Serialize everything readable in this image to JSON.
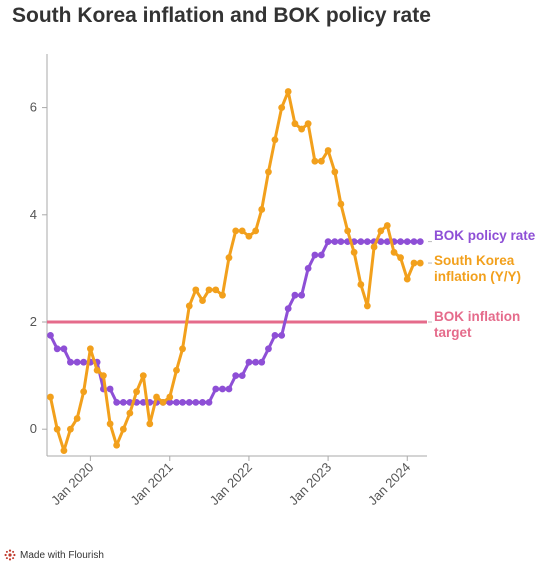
{
  "title": "South Korea inflation and BOK policy rate",
  "footer": {
    "text": "Made with Flourish",
    "logo_icon": "flourish-logo-icon"
  },
  "chart_data": {
    "type": "line",
    "title": "South Korea inflation and BOK policy rate",
    "xlabel": "",
    "ylabel": "",
    "ylim": [
      -0.5,
      7
    ],
    "yticks": [
      0,
      2,
      4,
      6
    ],
    "xlim": [
      "2019-06-15",
      "2024-04-01"
    ],
    "xticks": [
      {
        "label": "Jan 2020",
        "date": "2020-01-01"
      },
      {
        "label": "Jan 2021",
        "date": "2021-01-01"
      },
      {
        "label": "Jan 2022",
        "date": "2022-01-01"
      },
      {
        "label": "Jan 2023",
        "date": "2023-01-01"
      },
      {
        "label": "Jan 2024",
        "date": "2024-01-01"
      }
    ],
    "grid": false,
    "legend_placement": "right, end of lines",
    "x": [
      "2019-07",
      "2019-08",
      "2019-09",
      "2019-10",
      "2019-11",
      "2019-12",
      "2020-01",
      "2020-02",
      "2020-03",
      "2020-04",
      "2020-05",
      "2020-06",
      "2020-07",
      "2020-08",
      "2020-09",
      "2020-10",
      "2020-11",
      "2020-12",
      "2021-01",
      "2021-02",
      "2021-03",
      "2021-04",
      "2021-05",
      "2021-06",
      "2021-07",
      "2021-08",
      "2021-09",
      "2021-10",
      "2021-11",
      "2021-12",
      "2022-01",
      "2022-02",
      "2022-03",
      "2022-04",
      "2022-05",
      "2022-06",
      "2022-07",
      "2022-08",
      "2022-09",
      "2022-10",
      "2022-11",
      "2022-12",
      "2023-01",
      "2023-02",
      "2023-03",
      "2023-04",
      "2023-05",
      "2023-06",
      "2023-07",
      "2023-08",
      "2023-09",
      "2023-10",
      "2023-11",
      "2023-12",
      "2024-01",
      "2024-02",
      "2024-03"
    ],
    "series": [
      {
        "name": "BOK policy rate",
        "color": "#8e4fd6",
        "values": [
          1.75,
          1.5,
          1.5,
          1.25,
          1.25,
          1.25,
          1.25,
          1.25,
          0.75,
          0.75,
          0.5,
          0.5,
          0.5,
          0.5,
          0.5,
          0.5,
          0.5,
          0.5,
          0.5,
          0.5,
          0.5,
          0.5,
          0.5,
          0.5,
          0.5,
          0.75,
          0.75,
          0.75,
          1.0,
          1.0,
          1.25,
          1.25,
          1.25,
          1.5,
          1.75,
          1.75,
          2.25,
          2.5,
          2.5,
          3.0,
          3.25,
          3.25,
          3.5,
          3.5,
          3.5,
          3.5,
          3.5,
          3.5,
          3.5,
          3.5,
          3.5,
          3.5,
          3.5,
          3.5,
          3.5,
          3.5,
          3.5
        ]
      },
      {
        "name": "South Korea inflation (Y/Y)",
        "color": "#f2a01c",
        "values": [
          0.6,
          0.0,
          -0.4,
          0.0,
          0.2,
          0.7,
          1.5,
          1.1,
          1.0,
          0.1,
          -0.3,
          0.0,
          0.3,
          0.7,
          1.0,
          0.1,
          0.6,
          0.5,
          0.6,
          1.1,
          1.5,
          2.3,
          2.6,
          2.4,
          2.6,
          2.6,
          2.5,
          3.2,
          3.7,
          3.7,
          3.6,
          3.7,
          4.1,
          4.8,
          5.4,
          6.0,
          6.3,
          5.7,
          5.6,
          5.7,
          5.0,
          5.0,
          5.2,
          4.8,
          4.2,
          3.7,
          3.3,
          2.7,
          2.3,
          3.4,
          3.7,
          3.8,
          3.3,
          3.2,
          2.8,
          3.1,
          3.1
        ]
      },
      {
        "name": "BOK inflation target",
        "color": "#e56b8b",
        "values": [
          2,
          2,
          2,
          2,
          2,
          2,
          2,
          2,
          2,
          2,
          2,
          2,
          2,
          2,
          2,
          2,
          2,
          2,
          2,
          2,
          2,
          2,
          2,
          2,
          2,
          2,
          2,
          2,
          2,
          2,
          2,
          2,
          2,
          2,
          2,
          2,
          2,
          2,
          2,
          2,
          2,
          2,
          2,
          2,
          2,
          2,
          2,
          2,
          2,
          2,
          2,
          2,
          2,
          2,
          2,
          2,
          2
        ]
      }
    ],
    "legend": [
      {
        "label": "BOK policy rate",
        "color": "#8e4fd6",
        "anchor_value": 3.5
      },
      {
        "label": "South Korea inflation (Y/Y)",
        "color": "#f2a01c",
        "anchor_value": 3.1
      },
      {
        "label": "BOK inflation target",
        "color": "#e56b8b",
        "anchor_value": 2
      }
    ]
  }
}
